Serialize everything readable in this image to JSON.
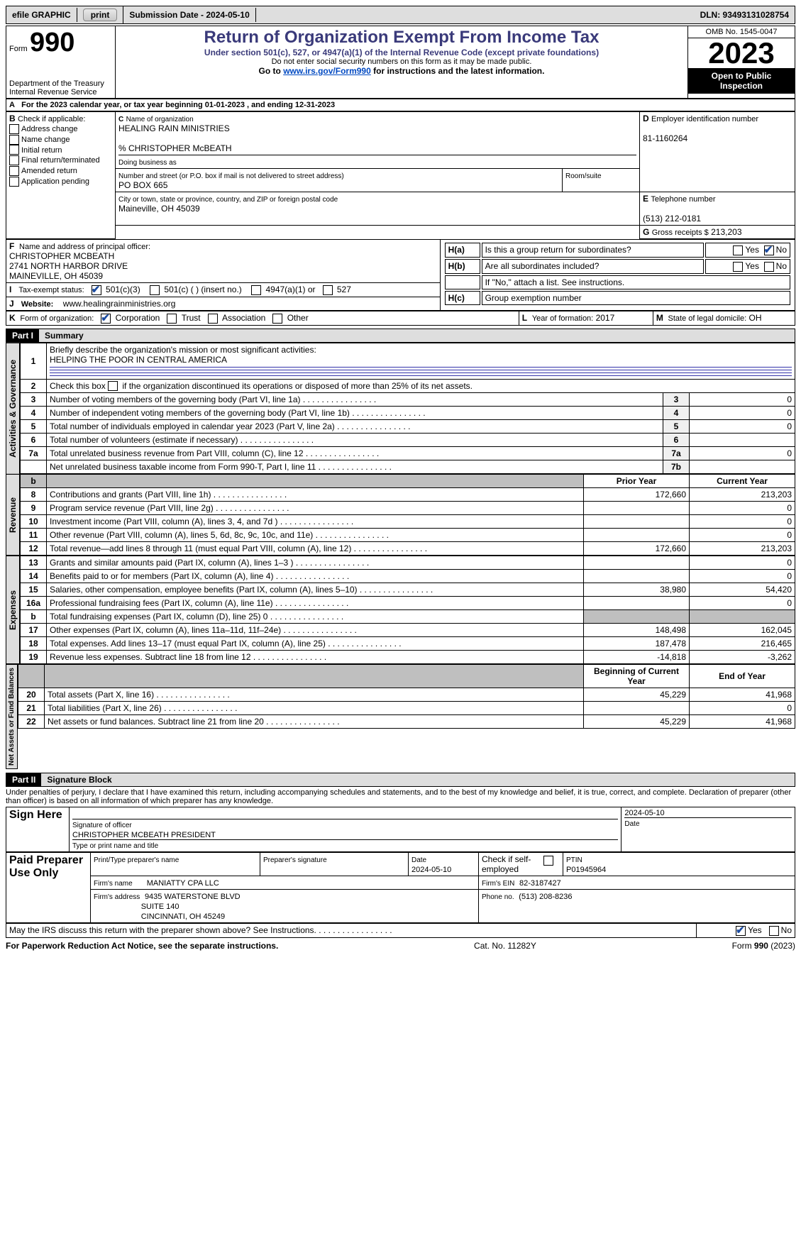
{
  "topbar": {
    "efile_label": "efile GRAPHIC",
    "print_btn": "print",
    "submission_label": "Submission Date - 2024-05-10",
    "dln_label": "DLN: 93493131028754"
  },
  "header": {
    "form_word": "Form",
    "form_no": "990",
    "dept1": "Department of the Treasury",
    "dept2": "Internal Revenue Service",
    "title": "Return of Organization Exempt From Income Tax",
    "subtitle": "Under section 501(c), 527, or 4947(a)(1) of the Internal Revenue Code (except private foundations)",
    "warn": "Do not enter social security numbers on this form as it may be made public.",
    "goto_pre": "Go to ",
    "goto_link": "www.irs.gov/Form990",
    "goto_post": " for instructions and the latest information.",
    "omb": "OMB No. 1545-0047",
    "year": "2023",
    "open": "Open to Public Inspection"
  },
  "A": {
    "text": "For the 2023 calendar year, or tax year beginning 01-01-2023    , and ending 12-31-2023",
    "label": "A"
  },
  "B": {
    "label": "B",
    "intro": "Check if applicable:",
    "items": [
      "Address change",
      "Name change",
      "Initial return",
      "Final return/terminated",
      "Amended return",
      "Application pending"
    ]
  },
  "C": {
    "label": "C",
    "name_lbl": "Name of organization",
    "name": "HEALING RAIN MINISTRIES",
    "careof": "% CHRISTOPHER McBEATH",
    "dba_lbl": "Doing business as",
    "addr_lbl": "Number and street (or P.O. box if mail is not delivered to street address)",
    "room_lbl": "Room/suite",
    "addr": "PO BOX 665",
    "city_lbl": "City or town, state or province, country, and ZIP or foreign postal code",
    "city": "Maineville, OH  45039"
  },
  "D": {
    "label": "D",
    "lbl": "Employer identification number",
    "val": "81-1160264"
  },
  "E": {
    "label": "E",
    "lbl": "Telephone number",
    "val": "(513) 212-0181"
  },
  "G": {
    "label": "G",
    "lbl": "Gross receipts $",
    "val": "213,203"
  },
  "F": {
    "label": "F",
    "lbl": "Name and address of principal officer:",
    "l1": "CHRISTOPHER MCBEATH",
    "l2": "2741 NORTH HARBOR DRIVE",
    "l3": "MAINEVILLE, OH  45039"
  },
  "H": {
    "a_lbl": "Is this a group return for subordinates?",
    "a_yes": "Yes",
    "a_no": "No",
    "a_checked": "no",
    "b_lbl": "Are all subordinates included?",
    "b_yes": "Yes",
    "b_no": "No",
    "b_note": "If \"No,\" attach a list. See instructions.",
    "c_lbl": "Group exemption number",
    "Ha": "H(a)",
    "Hb": "H(b)",
    "Hc": "H(c)"
  },
  "I": {
    "label": "I",
    "lbl": "Tax-exempt status:",
    "opts": [
      "501(c)(3)",
      "501(c) (  ) (insert no.)",
      "4947(a)(1) or",
      "527"
    ],
    "checked": 0
  },
  "J": {
    "label": "J",
    "lbl": "Website:",
    "val": "www.healingrainministries.org"
  },
  "K": {
    "label": "K",
    "lbl": "Form of organization:",
    "opts": [
      "Corporation",
      "Trust",
      "Association",
      "Other"
    ],
    "checked": 0
  },
  "L": {
    "label": "L",
    "lbl": "Year of formation:",
    "val": "2017"
  },
  "M": {
    "label": "M",
    "lbl": "State of legal domicile:",
    "val": "OH"
  },
  "part1": {
    "hdr": "Part I",
    "title": "Summary",
    "q1_lbl": "Briefly describe the organization's mission or most significant activities:",
    "q1_val": "HELPING THE POOR IN CENTRAL AMERICA",
    "q2_lbl": "Check this box ",
    "q2_post": " if the organization discontinued its operations or disposed of more than 25% of its net assets.",
    "gov_rows": [
      {
        "n": "3",
        "t": "Number of voting members of the governing body (Part VI, line 1a)",
        "k": "3",
        "v": "0"
      },
      {
        "n": "4",
        "t": "Number of independent voting members of the governing body (Part VI, line 1b)",
        "k": "4",
        "v": "0"
      },
      {
        "n": "5",
        "t": "Total number of individuals employed in calendar year 2023 (Part V, line 2a)",
        "k": "5",
        "v": "0"
      },
      {
        "n": "6",
        "t": "Total number of volunteers (estimate if necessary)",
        "k": "6",
        "v": ""
      },
      {
        "n": "7a",
        "t": "Total unrelated business revenue from Part VIII, column (C), line 12",
        "k": "7a",
        "v": "0"
      },
      {
        "n": "",
        "t": "Net unrelated business taxable income from Form 990-T, Part I, line 11",
        "k": "7b",
        "v": ""
      }
    ],
    "col_b": "b",
    "prior": "Prior Year",
    "current": "Current Year",
    "rev_rows": [
      {
        "n": "8",
        "t": "Contributions and grants (Part VIII, line 1h)",
        "p": "172,660",
        "c": "213,203"
      },
      {
        "n": "9",
        "t": "Program service revenue (Part VIII, line 2g)",
        "p": "",
        "c": "0"
      },
      {
        "n": "10",
        "t": "Investment income (Part VIII, column (A), lines 3, 4, and 7d )",
        "p": "",
        "c": "0"
      },
      {
        "n": "11",
        "t": "Other revenue (Part VIII, column (A), lines 5, 6d, 8c, 9c, 10c, and 11e)",
        "p": "",
        "c": "0"
      },
      {
        "n": "12",
        "t": "Total revenue—add lines 8 through 11 (must equal Part VIII, column (A), line 12)",
        "p": "172,660",
        "c": "213,203"
      }
    ],
    "exp_rows": [
      {
        "n": "13",
        "t": "Grants and similar amounts paid (Part IX, column (A), lines 1–3 )",
        "p": "",
        "c": "0"
      },
      {
        "n": "14",
        "t": "Benefits paid to or for members (Part IX, column (A), line 4)",
        "p": "",
        "c": "0"
      },
      {
        "n": "15",
        "t": "Salaries, other compensation, employee benefits (Part IX, column (A), lines 5–10)",
        "p": "38,980",
        "c": "54,420"
      },
      {
        "n": "16a",
        "t": "Professional fundraising fees (Part IX, column (A), line 11e)",
        "p": "",
        "c": "0"
      },
      {
        "n": "b",
        "t": "Total fundraising expenses (Part IX, column (D), line 25) 0",
        "p": "SHADE",
        "c": "SHADE"
      },
      {
        "n": "17",
        "t": "Other expenses (Part IX, column (A), lines 11a–11d, 11f–24e)",
        "p": "148,498",
        "c": "162,045"
      },
      {
        "n": "18",
        "t": "Total expenses. Add lines 13–17 (must equal Part IX, column (A), line 25)",
        "p": "187,478",
        "c": "216,465"
      },
      {
        "n": "19",
        "t": "Revenue less expenses. Subtract line 18 from line 12",
        "p": "-14,818",
        "c": "-3,262"
      }
    ],
    "na_hdr_p": "Beginning of Current Year",
    "na_hdr_c": "End of Year",
    "na_rows": [
      {
        "n": "20",
        "t": "Total assets (Part X, line 16)",
        "p": "45,229",
        "c": "41,968"
      },
      {
        "n": "21",
        "t": "Total liabilities (Part X, line 26)",
        "p": "",
        "c": "0"
      },
      {
        "n": "22",
        "t": "Net assets or fund balances. Subtract line 21 from line 20",
        "p": "45,229",
        "c": "41,968"
      }
    ],
    "side_gov": "Activities & Governance",
    "side_rev": "Revenue",
    "side_exp": "Expenses",
    "side_na": "Net Assets or Fund Balances"
  },
  "part2": {
    "hdr": "Part II",
    "title": "Signature Block",
    "perjury": "Under penalties of perjury, I declare that I have examined this return, including accompanying schedules and statements, and to the best of my knowledge and belief, it is true, correct, and complete. Declaration of preparer (other than officer) is based on all information of which preparer has any knowledge.",
    "sign_here": "Sign Here",
    "sig_officer_lbl": "Signature of officer",
    "sig_date_lbl": "Date",
    "sig_date": "2024-05-10",
    "officer": "CHRISTOPHER MCBEATH  PRESIDENT",
    "type_lbl": "Type or print name and title",
    "paid": "Paid Preparer Use Only",
    "prep_name_lbl": "Print/Type preparer's name",
    "prep_sig_lbl": "Preparer's signature",
    "prep_date_lbl": "Date",
    "prep_date": "2024-05-10",
    "check_self": "Check           if self-employed",
    "ptin_lbl": "PTIN",
    "ptin": "P01945964",
    "firm_name_lbl": "Firm's name",
    "firm_name": "MANIATTY CPA LLC",
    "firm_ein_lbl": "Firm's EIN",
    "firm_ein": "82-3187427",
    "firm_addr_lbl": "Firm's address",
    "firm_addr1": "9435 WATERSTONE BLVD",
    "firm_addr2": "SUITE 140",
    "firm_addr3": "CINCINNATI, OH  45249",
    "phone_lbl": "Phone no.",
    "phone": "(513) 208-8236",
    "discuss": "May the IRS discuss this return with the preparer shown above? See Instructions.",
    "yes": "Yes",
    "no": "No"
  },
  "footer": {
    "left": "For Paperwork Reduction Act Notice, see the separate instructions.",
    "mid": "Cat. No. 11282Y",
    "right_pre": "Form ",
    "right_form": "990",
    "right_post": " (2023)"
  }
}
